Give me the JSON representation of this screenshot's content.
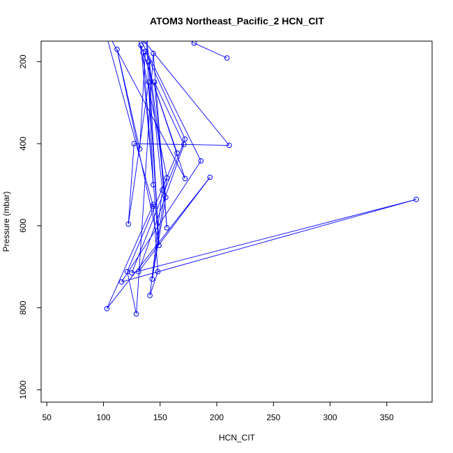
{
  "chart_data": {
    "type": "line",
    "title": "ATOM3 Northeast_Pacific_2 HCN_CIT",
    "xlabel": "HCN_CIT",
    "ylabel": "Pressure (mbar)",
    "xlim": [
      45,
      390
    ],
    "ylim": [
      1030,
      150
    ],
    "y_reversed": true,
    "x_ticks": [
      50,
      100,
      150,
      200,
      250,
      300,
      350
    ],
    "y_ticks": [
      200,
      400,
      600,
      800,
      1000
    ],
    "grid": false,
    "legend": "none",
    "series_color": "#0000ff",
    "series": [
      {
        "points": [
          [
            209,
            191
          ],
          [
            180,
            155
          ],
          [
            170,
            135
          ],
          [
            137,
            150
          ],
          [
            140,
            120
          ],
          [
            183,
            140
          ],
          [
            130,
            130
          ],
          [
            211,
            404
          ],
          [
            127,
            400
          ],
          [
            122,
            596
          ],
          [
            140,
            250
          ],
          [
            149,
            648
          ],
          [
            112,
            170
          ],
          [
            132,
            413
          ],
          [
            137,
            175
          ],
          [
            172,
            389
          ],
          [
            125,
            715
          ],
          [
            376,
            536
          ],
          [
            116,
            737
          ],
          [
            186,
            442
          ],
          [
            130,
            130
          ],
          [
            156,
            483
          ],
          [
            143,
            730
          ],
          [
            155,
            531
          ],
          [
            138,
            144
          ],
          [
            144,
            500
          ],
          [
            135,
            178
          ],
          [
            165,
            423
          ],
          [
            121,
            712
          ],
          [
            129,
            815
          ],
          [
            144,
            180
          ],
          [
            156,
            605
          ],
          [
            145,
            250
          ],
          [
            171,
            402
          ],
          [
            131,
            712
          ],
          [
            194,
            482
          ],
          [
            103,
            802
          ],
          [
            144,
            548
          ],
          [
            148,
            712
          ],
          [
            141,
            770
          ],
          [
            152,
            513
          ],
          [
            140,
            200
          ],
          [
            149,
            648
          ],
          [
            133,
            160
          ],
          [
            172,
            485
          ],
          [
            100,
            110
          ],
          [
            144,
            553
          ]
        ]
      }
    ]
  }
}
